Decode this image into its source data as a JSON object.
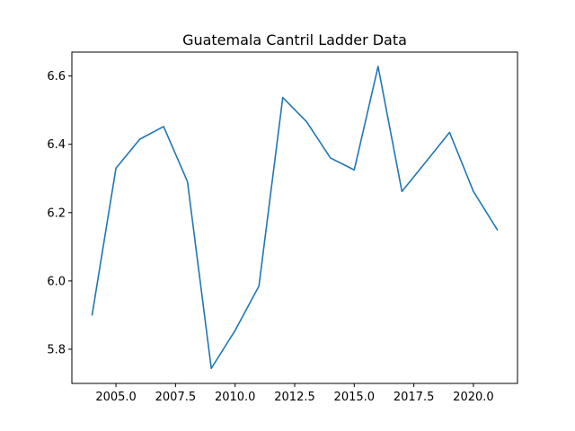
{
  "chart_data": {
    "type": "line",
    "title": "Guatemala Cantril Ladder Data",
    "xlabel": "",
    "ylabel": "",
    "xlim": [
      2003.15,
      2021.85
    ],
    "ylim": [
      5.7,
      6.67
    ],
    "grid": false,
    "x_ticks": [
      2005.0,
      2007.5,
      2010.0,
      2012.5,
      2015.0,
      2017.5,
      2020.0
    ],
    "x_tick_labels": [
      "2005.0",
      "2007.5",
      "2010.0",
      "2012.5",
      "2015.0",
      "2017.5",
      "2020.0"
    ],
    "y_ticks": [
      5.8,
      6.0,
      6.2,
      6.4,
      6.6
    ],
    "y_tick_labels": [
      "5.8",
      "6.0",
      "6.2",
      "6.4",
      "6.6"
    ],
    "series": [
      {
        "color": "#1f77b4",
        "x": [
          2004,
          2005,
          2006,
          2007,
          2008,
          2009,
          2010,
          2011,
          2012,
          2013,
          2014,
          2015,
          2016,
          2017,
          2018,
          2019,
          2020,
          2021
        ],
        "y": [
          5.901,
          6.33,
          6.415,
          6.452,
          6.291,
          5.744,
          5.855,
          5.985,
          6.537,
          6.466,
          6.36,
          6.325,
          6.628,
          6.262,
          6.348,
          6.435,
          6.262,
          6.15
        ]
      }
    ]
  }
}
